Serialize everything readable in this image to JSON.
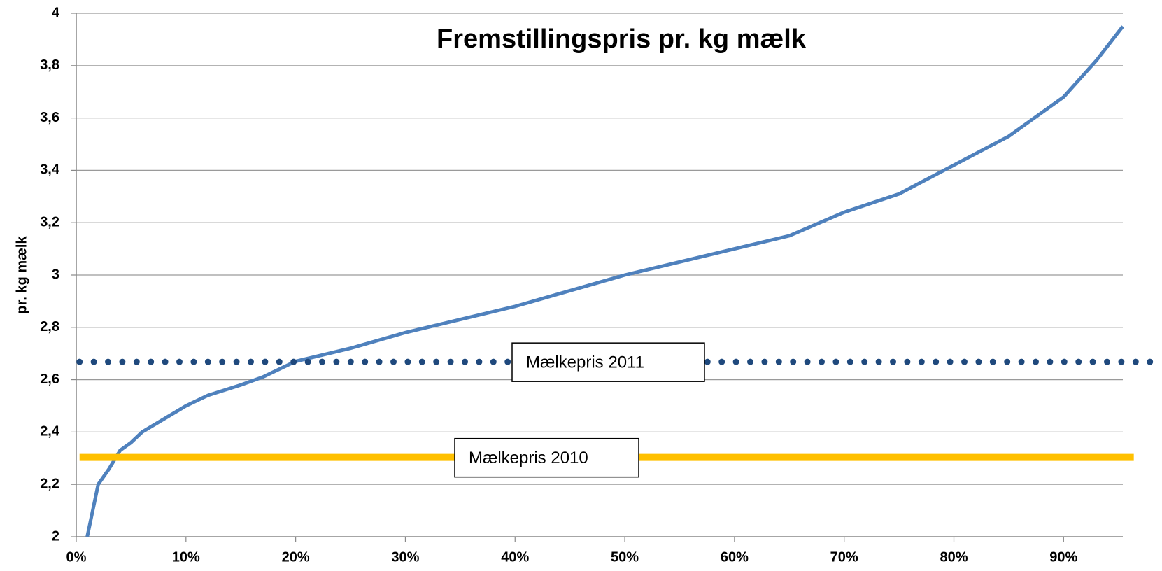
{
  "chart_data": {
    "type": "line",
    "title": "Fremstillingspris pr. kg mælk",
    "y_label": "pr. kg mælk",
    "xlim": [
      0,
      95.4
    ],
    "ylim": [
      2,
      4
    ],
    "xticks": [
      {
        "value": 0,
        "label": "0%"
      },
      {
        "value": 10,
        "label": "10%"
      },
      {
        "value": 20,
        "label": "20%"
      },
      {
        "value": 30,
        "label": "30%"
      },
      {
        "value": 40,
        "label": "40%"
      },
      {
        "value": 50,
        "label": "50%"
      },
      {
        "value": 60,
        "label": "60%"
      },
      {
        "value": 70,
        "label": "70%"
      },
      {
        "value": 80,
        "label": "80%"
      },
      {
        "value": 90,
        "label": "90%"
      }
    ],
    "yticks": [
      2,
      {
        "value": 2.2,
        "label": "2,2"
      },
      {
        "value": 2.4,
        "label": "2,4"
      },
      {
        "value": 2.6,
        "label": "2,6"
      },
      {
        "value": 2.8,
        "label": "2,8"
      },
      3,
      {
        "value": 3.2,
        "label": "3,2"
      },
      {
        "value": 3.4,
        "label": "3,4"
      },
      {
        "value": 3.6,
        "label": "3,6"
      },
      {
        "value": 3.8,
        "label": "3,8"
      },
      4
    ],
    "grid": true,
    "series": [
      {
        "color": "#4f81bd",
        "style": "solid",
        "x": [
          1,
          2,
          3,
          4,
          5,
          6,
          8,
          10,
          12,
          15,
          17,
          20,
          25,
          30,
          35,
          40,
          45,
          50,
          55,
          60,
          65,
          70,
          75,
          80,
          85,
          90,
          93,
          95.4
        ],
        "values": [
          2.0,
          2.2,
          2.26,
          2.33,
          2.36,
          2.4,
          2.45,
          2.5,
          2.54,
          2.58,
          2.61,
          2.67,
          2.72,
          2.78,
          2.83,
          2.88,
          2.94,
          3.0,
          3.05,
          3.1,
          3.15,
          3.24,
          3.31,
          3.42,
          3.53,
          3.68,
          3.82,
          3.95
        ]
      },
      {
        "name": "Mælkepris 2011",
        "color": "#1f497d",
        "style": "dotted",
        "x": [
          0.3,
          99
        ],
        "values": [
          2.668,
          2.668
        ]
      },
      {
        "name": "Mælkepris 2010",
        "color": "#ffc000",
        "style": "solid-thick",
        "x": [
          0.3,
          96.4
        ],
        "values": [
          2.303,
          2.303
        ]
      }
    ]
  }
}
